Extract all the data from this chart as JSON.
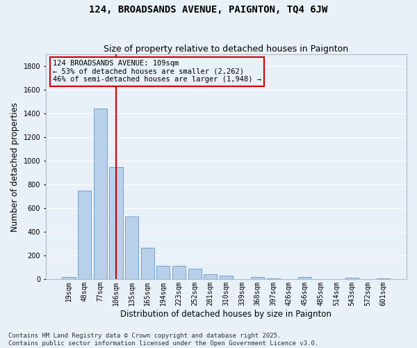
{
  "title": "124, BROADSANDS AVENUE, PAIGNTON, TQ4 6JW",
  "subtitle": "Size of property relative to detached houses in Paignton",
  "xlabel": "Distribution of detached houses by size in Paignton",
  "ylabel": "Number of detached properties",
  "categories": [
    "19sqm",
    "48sqm",
    "77sqm",
    "106sqm",
    "135sqm",
    "165sqm",
    "194sqm",
    "223sqm",
    "252sqm",
    "281sqm",
    "310sqm",
    "339sqm",
    "368sqm",
    "397sqm",
    "426sqm",
    "456sqm",
    "485sqm",
    "514sqm",
    "543sqm",
    "572sqm",
    "601sqm"
  ],
  "values": [
    20,
    750,
    1440,
    950,
    530,
    265,
    110,
    110,
    90,
    40,
    28,
    0,
    18,
    5,
    0,
    20,
    0,
    0,
    12,
    0,
    5
  ],
  "bar_color": "#b8d0ea",
  "bar_edge_color": "#6699cc",
  "bg_color": "#e8f0f8",
  "grid_color": "#ffffff",
  "vline_color": "#cc0000",
  "vline_x_index": 3,
  "annotation_text": "124 BROADSANDS AVENUE: 109sqm\n← 53% of detached houses are smaller (2,262)\n46% of semi-detached houses are larger (1,948) →",
  "annotation_box_color": "#cc0000",
  "ylim": [
    0,
    1900
  ],
  "yticks": [
    0,
    200,
    400,
    600,
    800,
    1000,
    1200,
    1400,
    1600,
    1800
  ],
  "footer": "Contains HM Land Registry data © Crown copyright and database right 2025.\nContains public sector information licensed under the Open Government Licence v3.0.",
  "title_fontsize": 10,
  "subtitle_fontsize": 9,
  "axis_label_fontsize": 8.5,
  "tick_fontsize": 7,
  "footer_fontsize": 6.5,
  "annotation_fontsize": 7.5
}
